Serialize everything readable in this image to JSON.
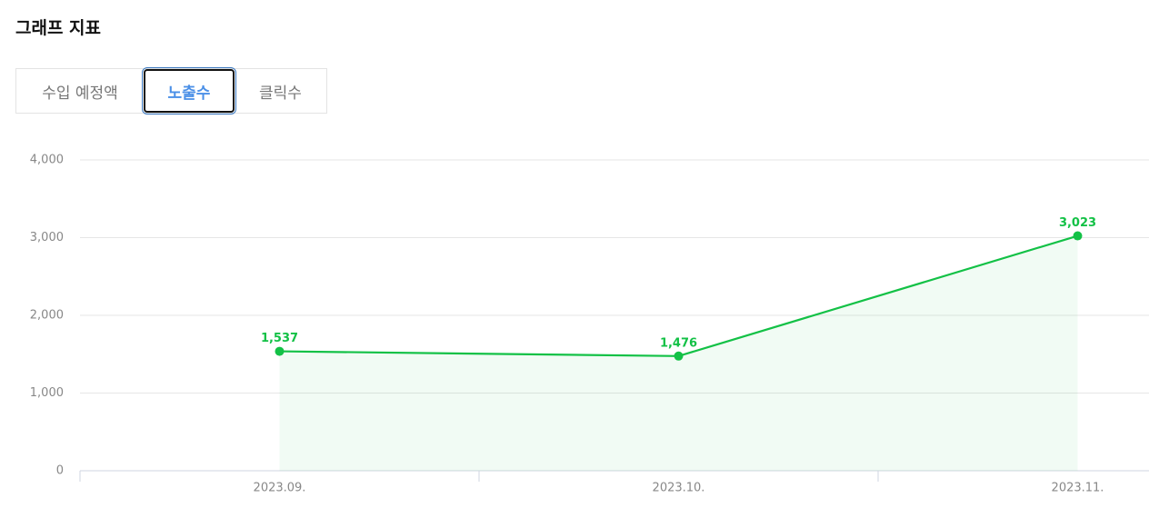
{
  "header": {
    "title": "그래프 지표"
  },
  "tabs": [
    "수입 예정액",
    "노출수",
    "클릭수"
  ],
  "chart_data": {
    "type": "line",
    "categories": [
      "2023.09.",
      "2023.10.",
      "2023.11."
    ],
    "values": [
      1537,
      1476,
      3023
    ],
    "value_labels": [
      "1,537",
      "1,476",
      "3,023"
    ],
    "color": "#13c146",
    "ylim": [
      0,
      4000
    ],
    "yticks": [
      0,
      {
        "value": 1000,
        "label": "1,000"
      },
      {
        "value": 2000,
        "label": "2,000"
      },
      {
        "value": 3000,
        "label": "3,000"
      },
      {
        "value": 4000,
        "label": "4,000"
      }
    ],
    "grid": true
  }
}
